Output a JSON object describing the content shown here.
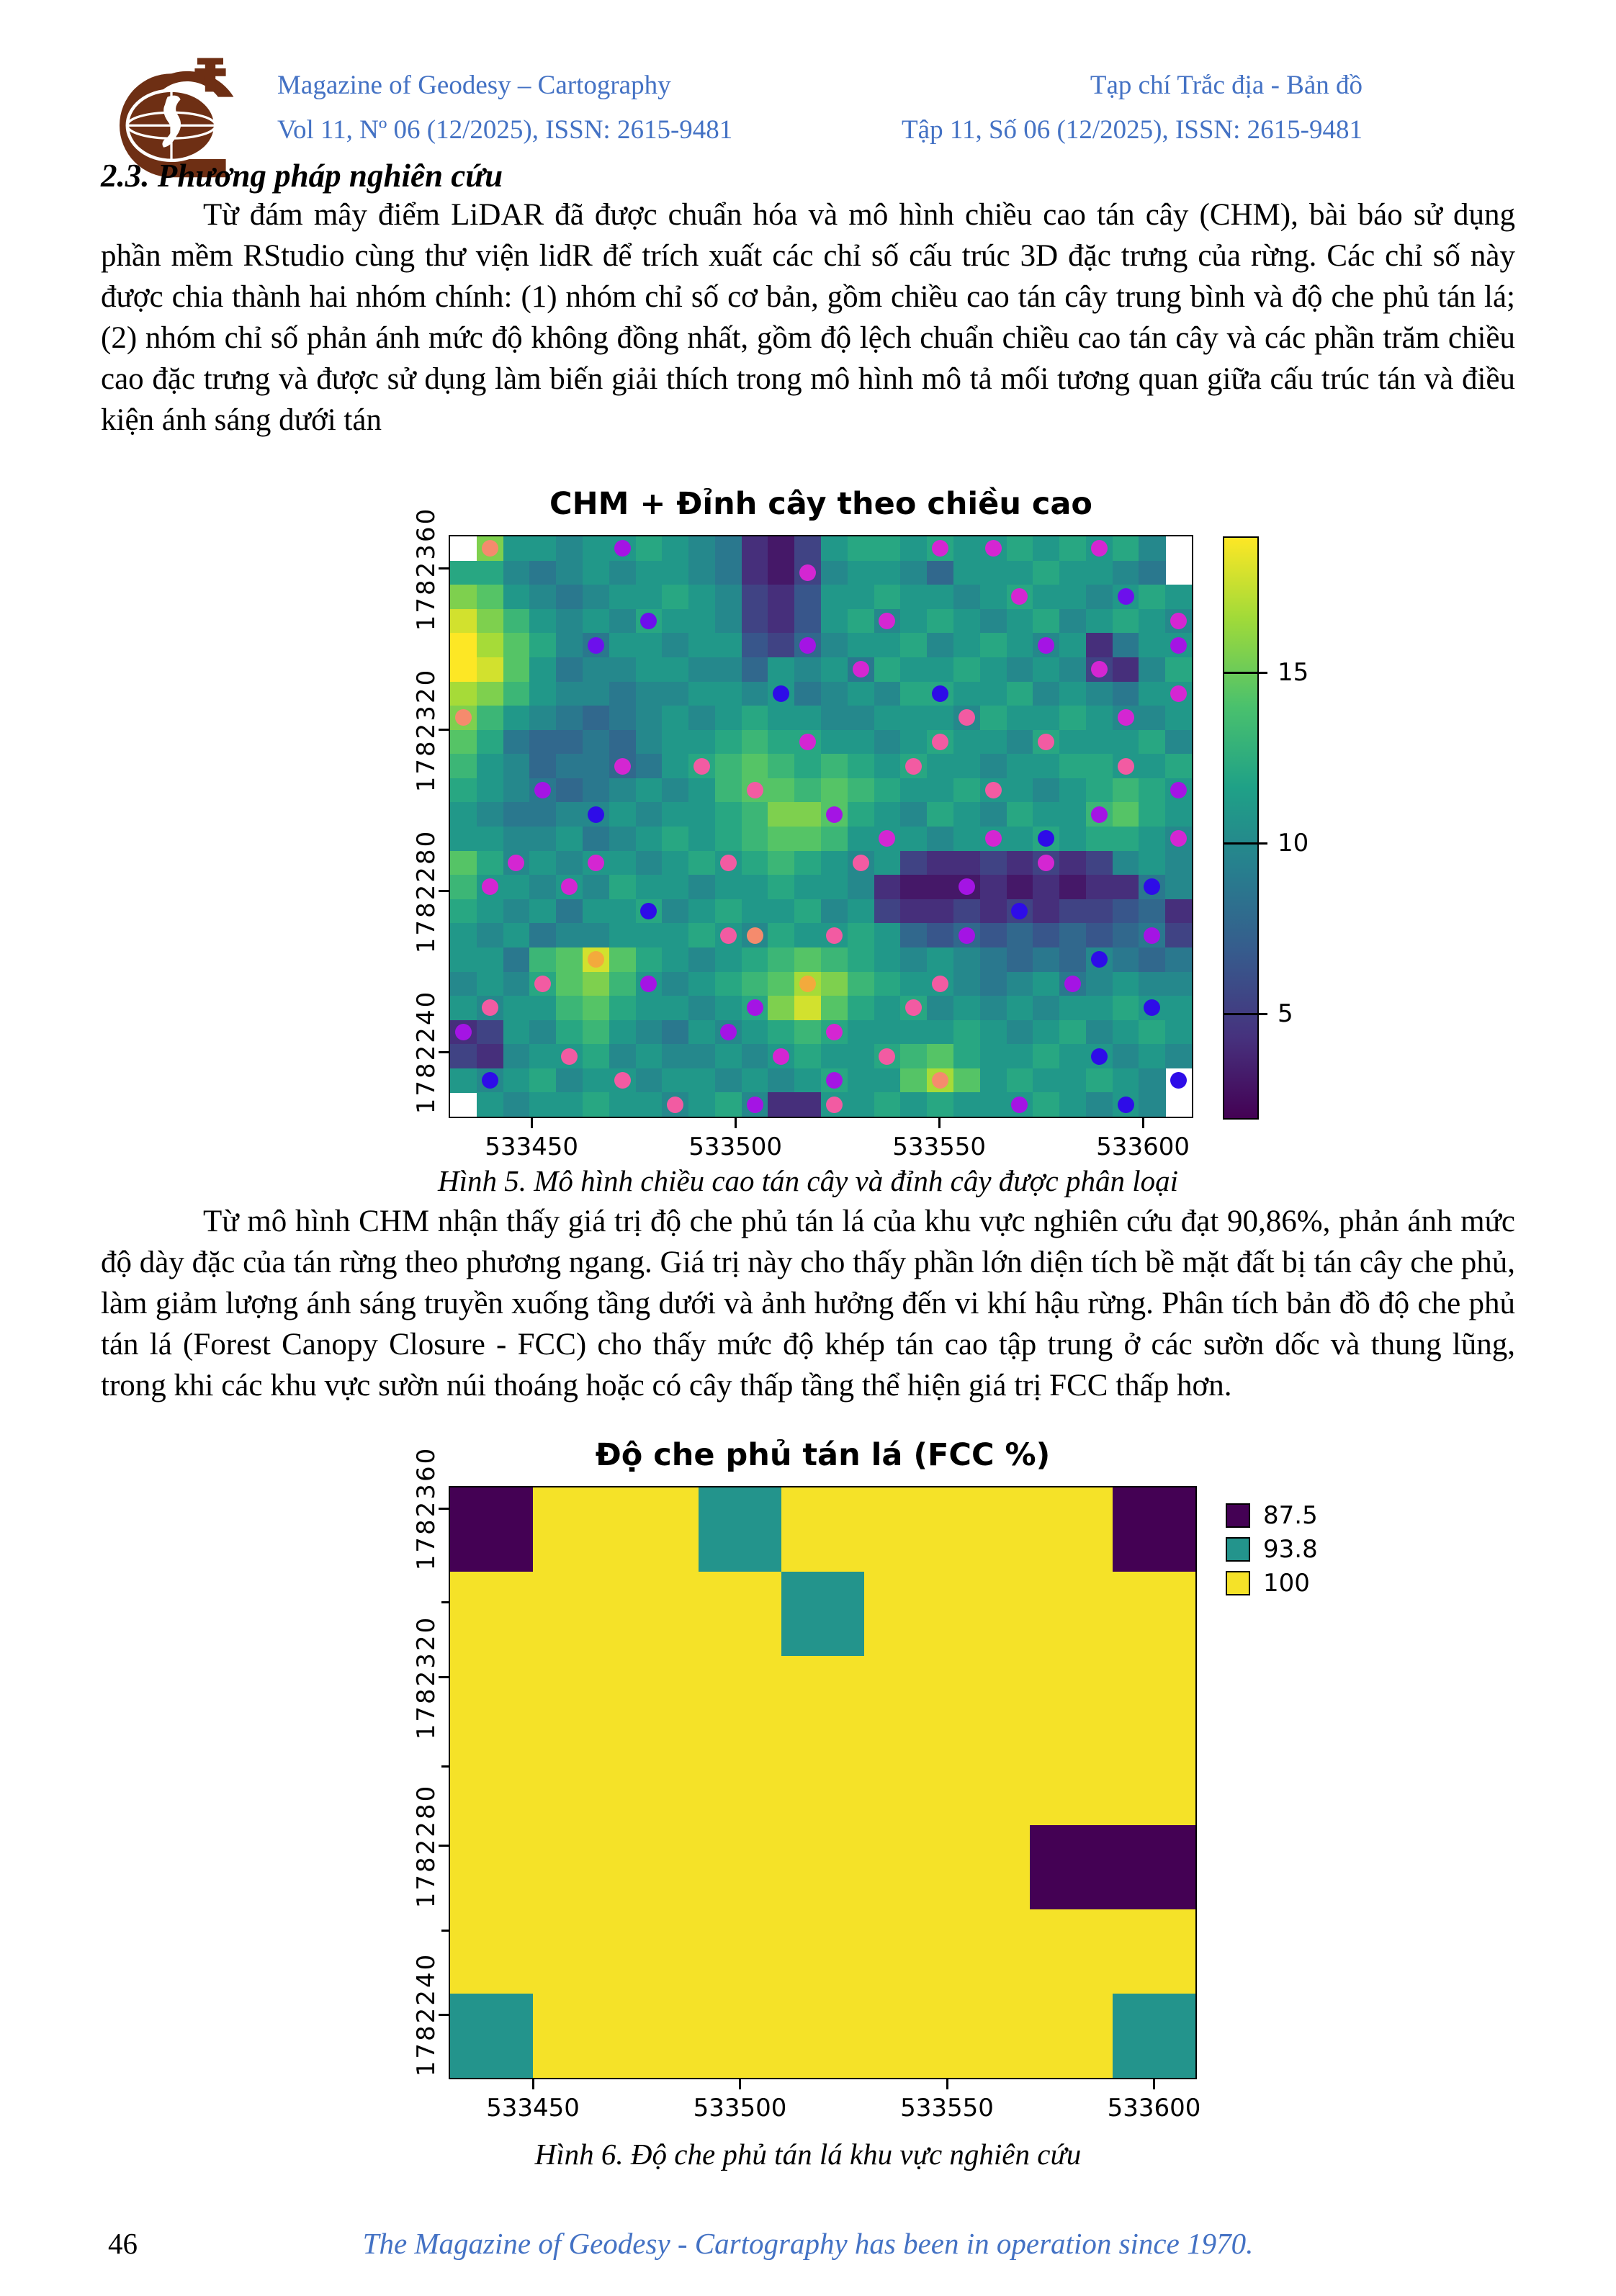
{
  "header": {
    "left_title": "Magazine of Geodesy – Cartography",
    "left_issue": "Vol 11, Nº 06 (12/2025), ISSN: 2615-9481",
    "right_title": "Tạp chí Trắc địa - Bản đồ",
    "right_issue": "Tập 11, Số 06 (12/2025), ISSN: 2615-9481",
    "accent_color": "#4472c4",
    "logo_color": "#6e2f14",
    "logo_icon": "geodesy-globe-logo"
  },
  "section": {
    "heading": "2.3. Phương pháp nghiên cứu",
    "paragraph1": "Từ đám mây điểm LiDAR đã được chuẩn hóa và mô hình chiều cao tán cây (CHM), bài báo sử dụng phần mềm RStudio cùng thư viện lidR để trích xuất các chỉ số cấu trúc 3D đặc trưng của rừng. Các chỉ số này được chia thành hai nhóm chính: (1) nhóm chỉ số cơ bản, gồm chiều cao tán cây trung bình và độ che phủ tán lá; (2) nhóm chỉ số phản ánh mức độ không đồng nhất, gồm độ lệch chuẩn chiều cao tán cây và các phần trăm chiều cao đặc trưng và được sử dụng làm biến giải thích trong mô hình mô tả mối tương quan giữa cấu trúc tán và điều kiện ánh sáng dưới tán",
    "paragraph2": "Từ mô hình CHM nhận thấy giá trị độ che phủ tán lá của khu vực nghiên cứu đạt 90,86%, phản ánh mức độ dày đặc của tán rừng theo phương ngang. Giá trị này cho thấy phần lớn diện tích bề mặt đất bị tán cây che phủ, làm giảm lượng ánh sáng truyền xuống tầng dưới và ảnh hưởng đến vi khí hậu rừng. Phân tích bản đồ độ che phủ tán lá (Forest Canopy Closure - FCC) cho thấy mức độ khép tán cao tập trung ở các sườn dốc và thung lũng, trong khi các khu vực sườn núi thoáng hoặc có cây thấp tầng thể hiện giá trị FCC thấp hơn."
  },
  "figures": {
    "fig5_caption": "Hình 5. Mô hình chiều cao tán cây và đỉnh cây được phân loại",
    "fig6_caption": "Hình 6. Độ che phủ tán lá khu vực nghiên cứu"
  },
  "footer": {
    "page_number": "46",
    "text": "The Magazine of Geodesy - Cartography has been in operation since 1970."
  },
  "chart_data": [
    {
      "type": "heatmap",
      "title": "CHM + Đỉnh cây theo chiều cao",
      "x_range": [
        533430,
        533612
      ],
      "y_range": [
        1782224,
        1782368
      ],
      "x_ticks": [
        533450,
        533500,
        533550,
        533600
      ],
      "y_ticks": [
        1782360,
        1782320,
        1782280,
        1782240
      ],
      "colorbar": {
        "ticks": [
          5,
          10,
          15
        ],
        "range": [
          2,
          19
        ]
      },
      "palette_viridis": [
        "#440154",
        "#46327e",
        "#365c8d",
        "#277f8e",
        "#1fa187",
        "#4ac16d",
        "#a0da39",
        "#fde725"
      ],
      "value_encoding": "hex digit = canopy height in m minus 2 (0=2m ... f=17m); x = no data (white)",
      "grid_rows": [
        "xc8878898762138998988989897x",
        "997678788762137887588898876x",
        "cb87678898732488988789887898",
        "eca8787988732489789878978987",
        "fdb9768878843578897898782688",
        "feb8677887758786988987873279",
        "dca8776778878678799889787688",
        "ca87656787898877888798898778",
        "b9655657889a9988789887988897",
        "a875665689aba9a9898878899889",
        "9876567878abbaba988988789a98",
        "87667787889accb987987988ab98",
        "88778678989abba8887888989987",
        "b97878878989a987832232323787",
        "a887879887889887211121212267",
        "9878688978988978322323233452",
        "8786778889879889854545454563",
        "886abeb98789aba9878765657656",
        "7879bca8789abdca988767867877",
        "8788ab988789ceb9897878788988",
        "23879a8768789a98888987897898",
        "32788978778789889ab988988787",
        "87897887887878988bdb8988987x",
        "x87889887897228898988898787x"
      ],
      "tree_tops": {
        "palette": [
          "#2e0ce8",
          "#6d10ec",
          "#a414e4",
          "#d426d2",
          "#f25ba2",
          "#f58b6d",
          "#f3aa3c"
        ],
        "palette_names": [
          "blue",
          "violet",
          "purple",
          "magenta",
          "pink",
          "salmon",
          "orange"
        ],
        "points": [
          [
            1,
            0,
            5
          ],
          [
            6,
            0,
            2
          ],
          [
            18,
            0,
            3
          ],
          [
            20,
            0,
            3
          ],
          [
            24,
            0,
            3
          ],
          [
            13,
            1,
            3
          ],
          [
            21,
            2,
            3
          ],
          [
            25,
            2,
            1
          ],
          [
            7,
            3,
            1
          ],
          [
            16,
            3,
            3
          ],
          [
            27,
            3,
            3
          ],
          [
            5,
            4,
            1
          ],
          [
            13,
            4,
            2
          ],
          [
            22,
            4,
            2
          ],
          [
            27,
            4,
            2
          ],
          [
            15,
            5,
            3
          ],
          [
            24,
            5,
            3
          ],
          [
            12,
            6,
            0
          ],
          [
            18,
            6,
            0
          ],
          [
            27,
            6,
            3
          ],
          [
            0,
            7,
            5
          ],
          [
            19,
            7,
            4
          ],
          [
            25,
            7,
            3
          ],
          [
            13,
            8,
            3
          ],
          [
            18,
            8,
            4
          ],
          [
            22,
            8,
            4
          ],
          [
            6,
            9,
            3
          ],
          [
            9,
            9,
            4
          ],
          [
            17,
            9,
            4
          ],
          [
            25,
            9,
            4
          ],
          [
            3,
            10,
            2
          ],
          [
            11,
            10,
            4
          ],
          [
            20,
            10,
            4
          ],
          [
            27,
            10,
            2
          ],
          [
            5,
            11,
            0
          ],
          [
            14,
            11,
            2
          ],
          [
            24,
            11,
            2
          ],
          [
            16,
            12,
            3
          ],
          [
            20,
            12,
            3
          ],
          [
            22,
            12,
            0
          ],
          [
            27,
            12,
            3
          ],
          [
            2,
            13,
            3
          ],
          [
            5,
            13,
            3
          ],
          [
            10,
            13,
            4
          ],
          [
            15,
            13,
            4
          ],
          [
            22,
            13,
            3
          ],
          [
            1,
            14,
            3
          ],
          [
            4,
            14,
            3
          ],
          [
            19,
            14,
            2
          ],
          [
            26,
            14,
            0
          ],
          [
            7,
            15,
            0
          ],
          [
            21,
            15,
            0
          ],
          [
            10,
            16,
            4
          ],
          [
            11,
            16,
            5
          ],
          [
            14,
            16,
            4
          ],
          [
            19,
            16,
            2
          ],
          [
            26,
            16,
            2
          ],
          [
            5,
            17,
            6
          ],
          [
            24,
            17,
            0
          ],
          [
            3,
            18,
            4
          ],
          [
            7,
            18,
            2
          ],
          [
            13,
            18,
            6
          ],
          [
            18,
            18,
            4
          ],
          [
            23,
            18,
            2
          ],
          [
            1,
            19,
            4
          ],
          [
            11,
            19,
            2
          ],
          [
            17,
            19,
            4
          ],
          [
            26,
            19,
            0
          ],
          [
            0,
            20,
            2
          ],
          [
            10,
            20,
            2
          ],
          [
            14,
            20,
            3
          ],
          [
            4,
            21,
            4
          ],
          [
            12,
            21,
            3
          ],
          [
            16,
            21,
            4
          ],
          [
            24,
            21,
            0
          ],
          [
            1,
            22,
            0
          ],
          [
            6,
            22,
            4
          ],
          [
            14,
            22,
            2
          ],
          [
            18,
            22,
            5
          ],
          [
            27,
            22,
            0
          ],
          [
            8,
            23,
            4
          ],
          [
            11,
            23,
            2
          ],
          [
            14,
            23,
            4
          ],
          [
            21,
            23,
            2
          ],
          [
            25,
            23,
            0
          ]
        ]
      }
    },
    {
      "type": "heatmap",
      "title": "Độ che phủ tán lá (FCC %)",
      "x_range": [
        533430,
        533610
      ],
      "y_range": [
        1782225,
        1782365
      ],
      "x_ticks": [
        533450,
        533500,
        533550,
        533600
      ],
      "y_ticks": [
        1782360,
        1782320,
        1782280,
        1782240
      ],
      "legend_position": "right",
      "classes": [
        {
          "label": "87.5",
          "color": "#440154"
        },
        {
          "label": "93.8",
          "color": "#23948c"
        },
        {
          "label": "100",
          "color": "#f5e228"
        }
      ],
      "cell_key": {
        "P": "87.5",
        "T": "93.8",
        "Y": "100"
      },
      "grid_rows": [
        "PYYTYYYYP",
        "YYYYTYYYY",
        "YYYYYYYYY",
        "YYYYYYYYY",
        "YYYYYYYPP",
        "YYYYYYYYY",
        "TYYYYYYYT"
      ]
    }
  ]
}
